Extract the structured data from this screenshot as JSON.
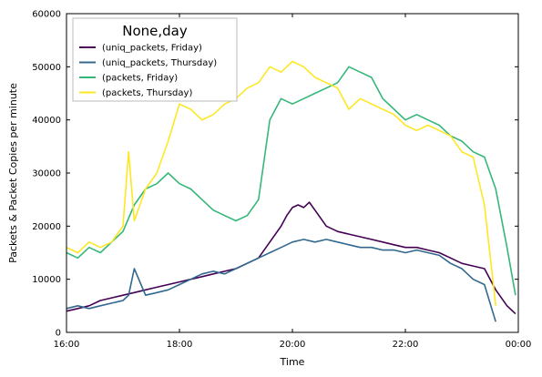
{
  "chart_data": {
    "type": "line",
    "xlabel": "Time",
    "ylabel": "Packets & Packet Copies per minute",
    "x_ticks": [
      "16:00",
      "18:00",
      "20:00",
      "22:00",
      "00:00"
    ],
    "x_range_hours": [
      16,
      24
    ],
    "ylim": [
      0,
      60000
    ],
    "y_ticks": [
      0,
      10000,
      20000,
      30000,
      40000,
      50000,
      60000
    ],
    "legend": {
      "title": "None,day",
      "position": "top-left"
    },
    "series": [
      {
        "name": "(uniq_packets, Friday)",
        "color": "#440154",
        "x_hours": [
          16.0,
          16.2,
          16.4,
          16.6,
          16.8,
          17.0,
          17.2,
          17.4,
          17.6,
          17.8,
          18.0,
          18.2,
          18.4,
          18.6,
          18.8,
          19.0,
          19.2,
          19.4,
          19.6,
          19.8,
          19.9,
          20.0,
          20.1,
          20.2,
          20.3,
          20.4,
          20.6,
          20.8,
          21.0,
          21.2,
          21.4,
          21.6,
          21.8,
          22.0,
          22.2,
          22.4,
          22.6,
          22.8,
          23.0,
          23.2,
          23.4,
          23.6,
          23.8,
          23.95
        ],
        "values": [
          4000,
          4500,
          5000,
          6000,
          6500,
          7000,
          7500,
          8000,
          8500,
          9000,
          9500,
          10000,
          10500,
          11000,
          11500,
          12000,
          13000,
          14000,
          17000,
          20000,
          22000,
          23500,
          24000,
          23500,
          24500,
          23000,
          20000,
          19000,
          18500,
          18000,
          17500,
          17000,
          16500,
          16000,
          16000,
          15500,
          15000,
          14000,
          13000,
          12500,
          12000,
          8000,
          5000,
          3500
        ]
      },
      {
        "name": "(uniq_packets, Thursday)",
        "color": "#31688e",
        "x_hours": [
          16.0,
          16.2,
          16.4,
          16.6,
          16.8,
          17.0,
          17.1,
          17.2,
          17.4,
          17.6,
          17.8,
          18.0,
          18.2,
          18.4,
          18.6,
          18.8,
          19.0,
          19.2,
          19.4,
          19.6,
          19.8,
          20.0,
          20.2,
          20.4,
          20.6,
          20.8,
          21.0,
          21.2,
          21.4,
          21.6,
          21.8,
          22.0,
          22.2,
          22.4,
          22.6,
          22.8,
          23.0,
          23.2,
          23.4,
          23.6
        ],
        "values": [
          4500,
          5000,
          4500,
          5000,
          5500,
          6000,
          7000,
          12000,
          7000,
          7500,
          8000,
          9000,
          10000,
          11000,
          11500,
          11000,
          12000,
          13000,
          14000,
          15000,
          16000,
          17000,
          17500,
          17000,
          17500,
          17000,
          16500,
          16000,
          16000,
          15500,
          15500,
          15000,
          15500,
          15000,
          14500,
          13000,
          12000,
          10000,
          9000,
          2000
        ]
      },
      {
        "name": "(packets, Friday)",
        "color": "#35b779",
        "x_hours": [
          16.0,
          16.2,
          16.4,
          16.6,
          16.8,
          17.0,
          17.2,
          17.4,
          17.6,
          17.8,
          18.0,
          18.2,
          18.4,
          18.6,
          18.8,
          19.0,
          19.2,
          19.4,
          19.6,
          19.8,
          20.0,
          20.2,
          20.4,
          20.6,
          20.8,
          21.0,
          21.2,
          21.4,
          21.6,
          21.8,
          22.0,
          22.2,
          22.4,
          22.6,
          22.8,
          23.0,
          23.2,
          23.4,
          23.6,
          23.8,
          23.95
        ],
        "values": [
          15000,
          14000,
          16000,
          15000,
          17000,
          19000,
          24000,
          27000,
          28000,
          30000,
          28000,
          27000,
          25000,
          23000,
          22000,
          21000,
          22000,
          25000,
          40000,
          44000,
          43000,
          44000,
          45000,
          46000,
          47000,
          50000,
          49000,
          48000,
          44000,
          42000,
          40000,
          41000,
          40000,
          39000,
          37000,
          36000,
          34000,
          33000,
          27000,
          16000,
          7000
        ]
      },
      {
        "name": "(packets, Thursday)",
        "color": "#fde725",
        "x_hours": [
          16.0,
          16.2,
          16.4,
          16.6,
          16.8,
          17.0,
          17.1,
          17.2,
          17.4,
          17.6,
          17.8,
          18.0,
          18.2,
          18.4,
          18.6,
          18.8,
          19.0,
          19.2,
          19.4,
          19.6,
          19.8,
          20.0,
          20.2,
          20.4,
          20.6,
          20.8,
          21.0,
          21.2,
          21.4,
          21.6,
          21.8,
          22.0,
          22.2,
          22.4,
          22.6,
          22.8,
          23.0,
          23.2,
          23.4,
          23.6
        ],
        "values": [
          16000,
          15000,
          17000,
          16000,
          17000,
          20000,
          34000,
          21000,
          27000,
          30000,
          36000,
          43000,
          42000,
          40000,
          41000,
          43000,
          44000,
          46000,
          47000,
          50000,
          49000,
          51000,
          50000,
          48000,
          47000,
          46000,
          42000,
          44000,
          43000,
          42000,
          41000,
          39000,
          38000,
          39000,
          38000,
          37000,
          34000,
          33000,
          24000,
          5000
        ]
      }
    ]
  }
}
